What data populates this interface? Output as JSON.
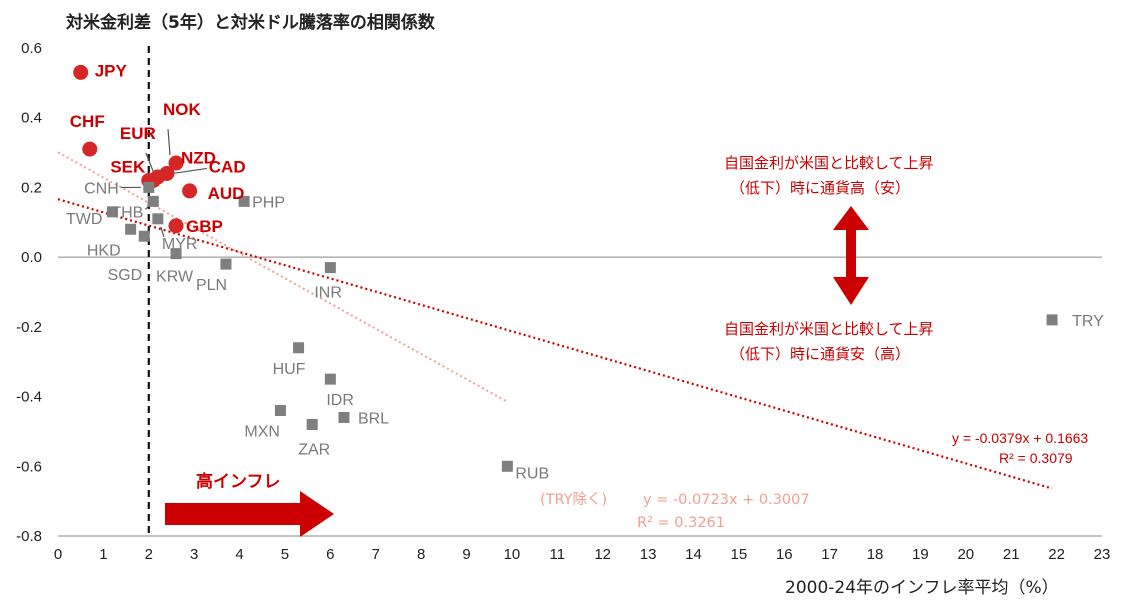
{
  "chart_data": {
    "type": "scatter",
    "title": "対米金利差（5年）と対米ドル騰落率の相関係数",
    "xlabel": "2000-24年のインフレ率平均（%）",
    "ylabel": "",
    "xlim": [
      0,
      23
    ],
    "ylim": [
      -0.8,
      0.6
    ],
    "x_ticks": [
      "0",
      "1",
      "2",
      "3",
      "4",
      "5",
      "6",
      "7",
      "8",
      "9",
      "10",
      "11",
      "12",
      "13",
      "14",
      "15",
      "16",
      "17",
      "18",
      "19",
      "20",
      "21",
      "22",
      "23"
    ],
    "y_ticks": [
      "0.6",
      "0.4",
      "0.2",
      "0.0",
      "-0.2",
      "-0.4",
      "-0.6",
      "-0.8"
    ],
    "series": [
      {
        "color": "#d62728",
        "marker": "circle",
        "points": [
          {
            "label": "JPY",
            "x": 0.5,
            "y": 0.53
          },
          {
            "label": "CHF",
            "x": 0.7,
            "y": 0.31
          },
          {
            "label": "SEK",
            "x": 2.1,
            "y": 0.22
          },
          {
            "label": "EUR",
            "x": 2.2,
            "y": 0.23
          },
          {
            "label": "NOK",
            "x": 2.6,
            "y": 0.27
          },
          {
            "label": "NZD",
            "x": 2.4,
            "y": 0.24
          },
          {
            "label": "CAD",
            "x": 2.0,
            "y": 0.22
          },
          {
            "label": "AUD",
            "x": 2.9,
            "y": 0.19
          },
          {
            "label": "GBP",
            "x": 2.6,
            "y": 0.09
          }
        ]
      },
      {
        "color": "#7f7f7f",
        "marker": "square",
        "points": [
          {
            "label": "CNH",
            "x": 2.0,
            "y": 0.2
          },
          {
            "label": "THB",
            "x": 2.1,
            "y": 0.16
          },
          {
            "label": "MYR",
            "x": 2.2,
            "y": 0.11
          },
          {
            "label": "PHP",
            "x": 4.1,
            "y": 0.16
          },
          {
            "label": "TWD",
            "x": 1.2,
            "y": 0.13
          },
          {
            "label": "HKD",
            "x": 1.6,
            "y": 0.08
          },
          {
            "label": "SGD",
            "x": 1.9,
            "y": 0.06
          },
          {
            "label": "KRW",
            "x": 2.6,
            "y": 0.01
          },
          {
            "label": "PLN",
            "x": 3.7,
            "y": -0.02
          },
          {
            "label": "INR",
            "x": 6.0,
            "y": -0.03
          },
          {
            "label": "TRY",
            "x": 21.9,
            "y": -0.18
          },
          {
            "label": "HUF",
            "x": 5.3,
            "y": -0.26
          },
          {
            "label": "IDR",
            "x": 6.0,
            "y": -0.35
          },
          {
            "label": "MXN",
            "x": 4.9,
            "y": -0.44
          },
          {
            "label": "BRL",
            "x": 6.3,
            "y": -0.46
          },
          {
            "label": "ZAR",
            "x": 5.6,
            "y": -0.48
          },
          {
            "label": "RUB",
            "x": 9.9,
            "y": -0.6
          }
        ]
      }
    ],
    "trendlines": [
      {
        "eq": "y = -0.0379x + 0.1663",
        "r2": "R² = 0.3079",
        "slope": -0.0379,
        "intercept": 0.1663,
        "x_range": [
          0,
          21.9
        ],
        "color": "#cc0000"
      },
      {
        "prefix": "(TRY除く)",
        "eq": "y = -0.0723x + 0.3007",
        "r2": "R² = 0.3261",
        "slope": -0.0723,
        "intercept": 0.3007,
        "x_range": [
          0,
          9.9
        ],
        "color": "#f0a090"
      }
    ],
    "vline_x": 2,
    "annotations": {
      "upper_line1": "自国金利が米国と比較して上昇",
      "upper_line2": "（低下）時に通貨高（安）",
      "lower_line1": "自国金利が米国と比較して上昇",
      "lower_line2": "（低下）時に通貨安（高）",
      "high_inflation": "高インフレ"
    }
  }
}
